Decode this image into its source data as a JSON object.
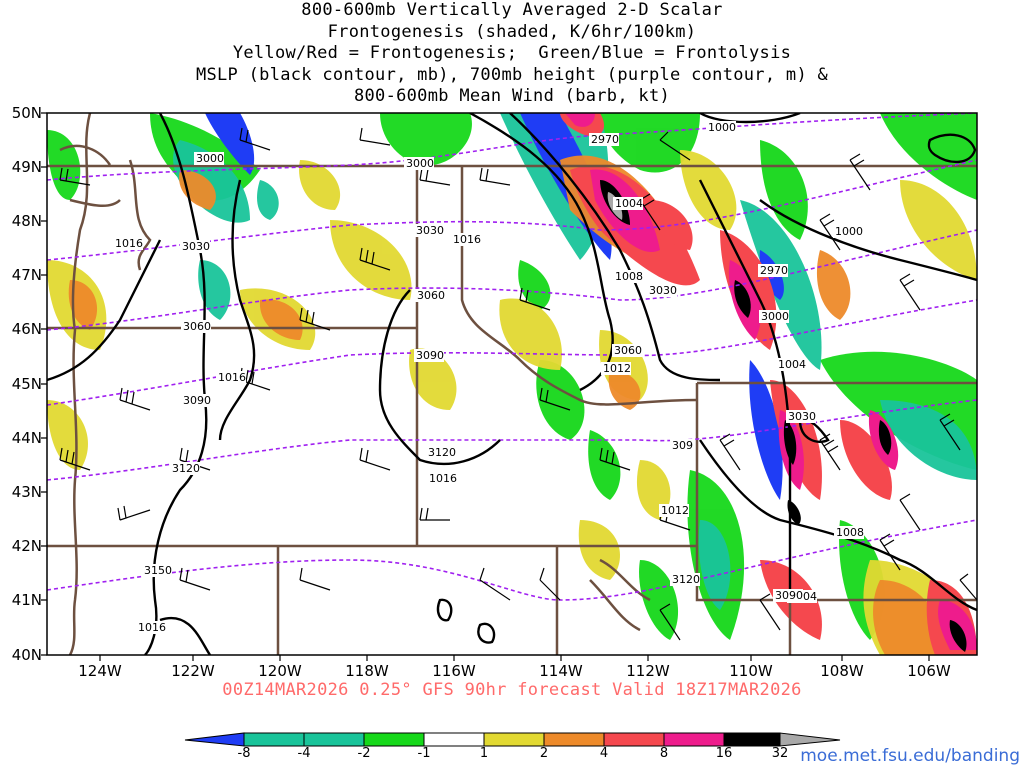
{
  "title_lines": [
    "800-600mb Vertically Averaged 2-D Scalar",
    "Frontogenesis (shaded, K/6hr/100km)",
    "Yellow/Red = Frontogenesis;  Green/Blue = Frontolysis",
    "MSLP (black contour, mb), 700mb height (purple contour, m) &",
    "800-600mb Mean Wind (barb, kt)"
  ],
  "valid_line": "00Z14MAR2026 0.25° GFS 90hr forecast Valid 18Z17MAR2026",
  "url": "moe.met.fsu.edu/banding",
  "lat_labels": [
    "50N",
    "49N",
    "48N",
    "47N",
    "46N",
    "45N",
    "44N",
    "43N",
    "42N",
    "41N",
    "40N"
  ],
  "lon_labels": [
    "124W",
    "122W",
    "120W",
    "118W",
    "116W",
    "114W",
    "112W",
    "110W",
    "108W",
    "106W"
  ],
  "colorbar": {
    "labels": [
      "-8",
      "-4",
      "-2",
      "-1",
      "1",
      "2",
      "4",
      "8",
      "16",
      "32"
    ],
    "colors": [
      "#1f3df5",
      "#19c49a",
      "#19c49a",
      "#16d81a",
      "#ffffff",
      "#e2d932",
      "#ed8a2a",
      "#f5484e",
      "#ee1c8c",
      "#000000",
      "#a9a9a9"
    ]
  },
  "colors": {
    "mslp": "#000000",
    "height": "#a020f0",
    "borders": "#6d5040",
    "barbs": "#000000",
    "valid_text": "#ff6a6a",
    "url": "#3a6cd6"
  },
  "mslp_labels": [
    "1000",
    "1004",
    "1004",
    "1008",
    "1012",
    "1016",
    "1016",
    "1016",
    "1016",
    "1000",
    "1004",
    "1008",
    "1012",
    "1016"
  ],
  "height_labels": [
    "2970",
    "2970",
    "3000",
    "3000",
    "3000",
    "3030",
    "3030",
    "3030",
    "3030",
    "3060",
    "3060",
    "3060",
    "3090",
    "3090",
    "3090",
    "309",
    "3120",
    "3120",
    "3120",
    "3150"
  ]
}
